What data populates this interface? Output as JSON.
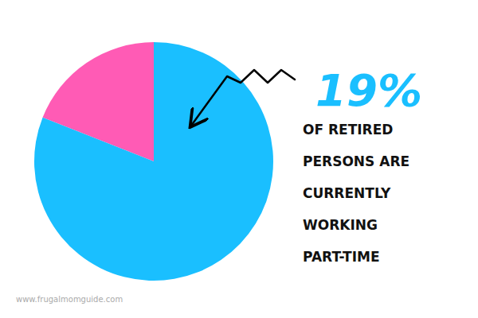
{
  "chart_data": {
    "type": "pie",
    "values": [
      19,
      81
    ],
    "colors": [
      "#FF5BB5",
      "#1ABFFF"
    ],
    "annotations": [
      "19%",
      "OF RETIRED",
      "PERSONS ARE",
      "CURRENTLY",
      "WORKING",
      "PART-TIME",
      "www.frugalmomguide.com"
    ]
  }
}
